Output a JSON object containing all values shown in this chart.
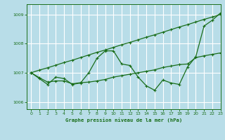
{
  "title": "Graphe pression niveau de la mer (hPa)",
  "bg_color": "#b8dde8",
  "grid_color": "#ffffff",
  "line_color": "#1a6e1a",
  "xlim": [
    -0.5,
    23
  ],
  "ylim": [
    1005.75,
    1009.35
  ],
  "yticks": [
    1006,
    1007,
    1008,
    1009
  ],
  "xticks": [
    0,
    1,
    2,
    3,
    4,
    5,
    6,
    7,
    8,
    9,
    10,
    11,
    12,
    13,
    14,
    15,
    16,
    17,
    18,
    19,
    20,
    21,
    22,
    23
  ],
  "x": [
    0,
    1,
    2,
    3,
    4,
    5,
    6,
    7,
    8,
    9,
    10,
    11,
    12,
    13,
    14,
    15,
    16,
    17,
    18,
    19,
    20,
    21,
    22,
    23
  ],
  "zigzag": [
    1007.0,
    1006.8,
    1006.6,
    1006.85,
    1006.8,
    1006.6,
    1006.65,
    1007.0,
    1007.5,
    1007.75,
    1007.75,
    1007.3,
    1007.25,
    1006.85,
    1006.55,
    1006.4,
    1006.75,
    1006.65,
    1006.6,
    1007.2,
    1007.55,
    1008.6,
    1008.8,
    1009.05
  ],
  "upper_line": [
    1007.0,
    1007.09,
    1007.17,
    1007.26,
    1007.35,
    1007.43,
    1007.52,
    1007.61,
    1007.7,
    1007.78,
    1007.87,
    1007.96,
    1008.04,
    1008.13,
    1008.22,
    1008.3,
    1008.39,
    1008.48,
    1008.57,
    1008.65,
    1008.74,
    1008.83,
    1008.91,
    1009.0
  ],
  "lower_line": [
    1007.0,
    1006.83,
    1006.68,
    1006.72,
    1006.72,
    1006.62,
    1006.66,
    1006.68,
    1006.72,
    1006.77,
    1006.85,
    1006.9,
    1006.95,
    1007.0,
    1007.05,
    1007.1,
    1007.18,
    1007.23,
    1007.28,
    1007.3,
    1007.52,
    1007.58,
    1007.63,
    1007.68
  ]
}
